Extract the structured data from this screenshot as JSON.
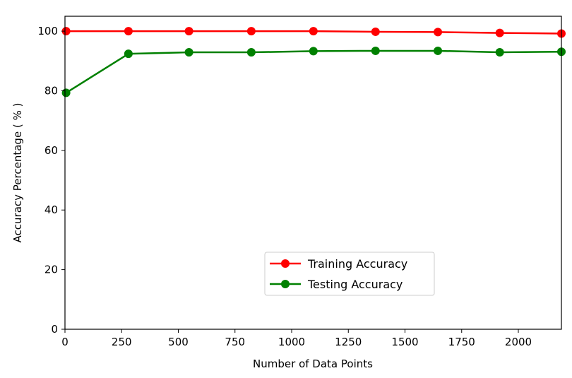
{
  "chart_data": {
    "type": "line",
    "xlabel": "Number of Data Points",
    "ylabel": "Accuracy Percentage ( % )",
    "xlim": [
      0,
      2190
    ],
    "ylim": [
      0,
      105
    ],
    "xticks": [
      0,
      250,
      500,
      750,
      1000,
      1250,
      1500,
      1750,
      2000
    ],
    "yticks": [
      0,
      20,
      40,
      60,
      80,
      100
    ],
    "x": [
      5,
      280,
      547,
      822,
      1096,
      1370,
      1645,
      1918,
      2190
    ],
    "series": [
      {
        "name": "Training Accuracy",
        "color": "#ff0000",
        "marker": "circle",
        "values": [
          100.0,
          100.0,
          100.0,
          100.0,
          100.0,
          99.8,
          99.7,
          99.4,
          99.2
        ]
      },
      {
        "name": "Testing Accuracy",
        "color": "#008000",
        "marker": "circle",
        "values": [
          79.3,
          92.4,
          92.9,
          92.9,
          93.3,
          93.4,
          93.4,
          92.9,
          93.1
        ]
      }
    ],
    "legend_position": "lower-center",
    "grid": false
  }
}
